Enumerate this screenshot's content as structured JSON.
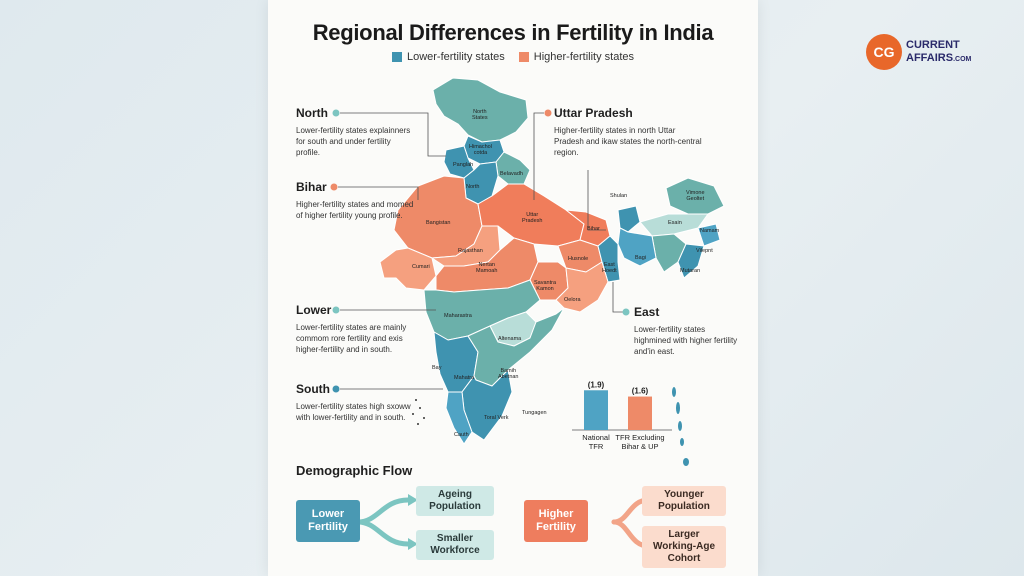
{
  "title": "Regional Differences in Fertility in India",
  "legend": [
    {
      "label": "Lower-fertility states",
      "color": "#3f93b0"
    },
    {
      "label": "Higher-fertility states",
      "color": "#ee8a68"
    }
  ],
  "annotations": {
    "north": {
      "heading": "North",
      "body": "Lower-fertility states explainners for south and under fertility profile."
    },
    "bihar": {
      "heading": "Bihar",
      "body": "Higher-fertility states and momed of higher fertility young profile."
    },
    "lower": {
      "heading": "Lower",
      "body": "Lower-fertility states are mainly commom rore fertility and exis higher-fertility and in south."
    },
    "south": {
      "heading": "South",
      "body": "Lower-fertility states high sxoww with lower-fertility and in south."
    },
    "up": {
      "heading": "Uttar Pradesh",
      "body": "Higher-fertility states in north Uttar Pradesh and ikaw states the north-central region."
    },
    "east": {
      "heading": "East",
      "body": "Lower-fertility states highmined with higher fertility and'in east."
    }
  },
  "map_labels": {
    "north_states": "North\nStates",
    "himachal": "Himachol\ncotda",
    "panjab": "Panglah",
    "belavadh": "Belavadh",
    "north": "North",
    "bangistan": "Bangistan",
    "uttar_pradesh": "Uttar\nPradesh",
    "bihar": "Bihar",
    "rajasthan": "Rajasthan",
    "nertan_mamoah": "Nertan\nMamoah",
    "cumari": "Cumari",
    "husnole": "Husnole",
    "east_hoedt": "East\nHoedt",
    "savantra": "Savantra\nKamon",
    "oelora": "Oelora",
    "maharastra": "Maharastra",
    "altenama": "Altenama",
    "bay": "Bay",
    "mahatra": "Mahatra",
    "bamih": "Bamih\nAbetnan",
    "tungagen": "Tungagen",
    "toral_verk": "Toral Verk",
    "cauth": "Cauth",
    "shulan": "Shulan",
    "vimone": "Vimone\nGeoltet",
    "esain": "Esain",
    "namam": "Namam",
    "bagi": "Bagi",
    "vilepnt": "Vilepnt",
    "mutaran": "Mutaran"
  },
  "chart_data": {
    "type": "bar",
    "categories": [
      "National TFR",
      "TFR Excluding Bihar & UP"
    ],
    "values": [
      1.9,
      1.6
    ],
    "value_labels": [
      "(1.9)",
      "(1.6)"
    ],
    "category_labels": [
      "National\nTFR",
      "TFR Excluding\nBihar & UP"
    ],
    "colors": [
      "#4fa3c4",
      "#ee8a68"
    ],
    "ylim": [
      0,
      2.2
    ]
  },
  "flow": {
    "title": "Demographic Flow",
    "lower": {
      "source": "Lower\nFertility",
      "targets": [
        "Ageing\nPopulation",
        "Smaller\nWorkforce"
      ]
    },
    "higher": {
      "source": "Higher\nFertility",
      "targets": [
        "Younger\nPopulation",
        "Larger\nWorking-Age\nCohort"
      ]
    }
  },
  "logo": {
    "initials": "CG",
    "line1": "CURRENT",
    "line2": "AFFAIRS",
    "suffix": ".COM",
    "color": "#e8672a"
  }
}
